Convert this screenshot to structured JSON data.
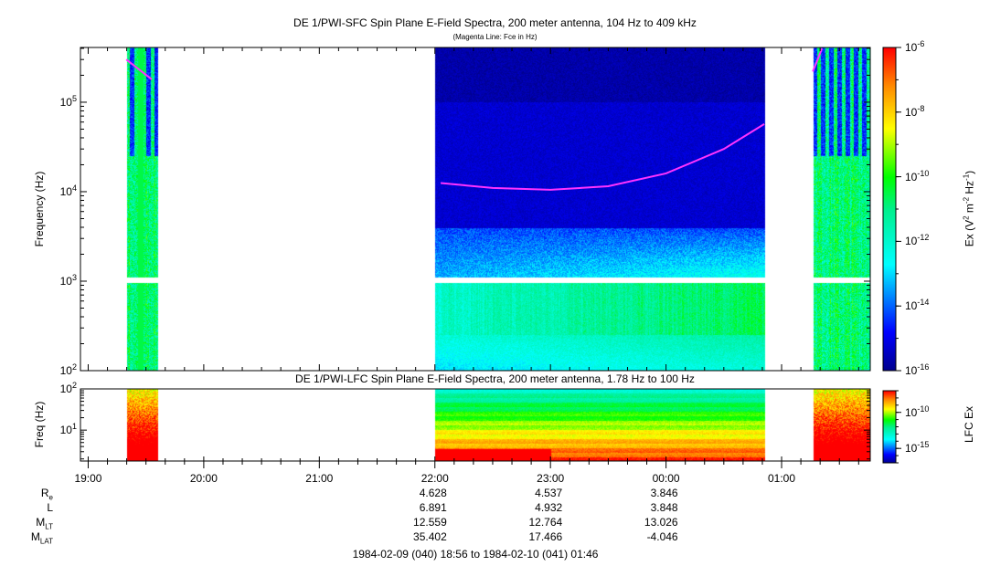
{
  "chart_data": [
    {
      "type": "heatmap",
      "title": "DE 1/PWI-SFC  Spin Plane E-Field Spectra, 200 meter antenna, 104 Hz to 409 kHz",
      "subtitle": "(Magenta Line: Fce in Hz)",
      "ylabel": "Frequency (Hz)",
      "yscale": "log",
      "ylim": [
        100,
        409000
      ],
      "yticks": [
        {
          "v": 100,
          "m": "10",
          "e": "2"
        },
        {
          "v": 1000,
          "m": "10",
          "e": "3"
        },
        {
          "v": 10000,
          "m": "10",
          "e": "4"
        },
        {
          "v": 100000,
          "m": "10",
          "e": "5"
        }
      ],
      "colorbar": {
        "label_main": "Ex (V",
        "label_tail": " m",
        "label_tail2": " Hz",
        "label_e1": "2",
        "label_e2": "-2",
        "label_e3": "-1",
        "label_close": ")",
        "range_log10": [
          -16,
          -6
        ],
        "ticks": [
          {
            "m": "10",
            "e": "-6",
            "v": -6
          },
          {
            "m": "10",
            "e": "-8",
            "v": -8
          },
          {
            "m": "10",
            "e": "-10",
            "v": -10
          },
          {
            "m": "10",
            "e": "-12",
            "v": -12
          },
          {
            "m": "10",
            "e": "-14",
            "v": -14
          },
          {
            "m": "10",
            "e": "-16",
            "v": -16
          }
        ]
      },
      "data_segments_hours": [
        [
          19.33,
          19.6
        ],
        [
          22.0,
          24.85
        ],
        [
          25.27,
          25.77
        ]
      ],
      "fce_line_hz": {
        "left": [
          [
            19.33,
            300000
          ],
          [
            19.55,
            180000
          ]
        ],
        "middle": [
          [
            22.05,
            12500
          ],
          [
            22.5,
            11000
          ],
          [
            23.0,
            10500
          ],
          [
            23.5,
            11500
          ],
          [
            24.0,
            16000
          ],
          [
            24.5,
            30000
          ],
          [
            24.85,
            57000
          ]
        ],
        "right": [
          [
            25.27,
            220000
          ],
          [
            25.35,
            400000
          ]
        ]
      }
    },
    {
      "type": "heatmap",
      "title": "DE 1/PWI-LFC  Spin Plane E-Field Spectra, 200 meter antenna, 1.78 Hz to 100 Hz",
      "ylabel": "Freq (Hz)",
      "yscale": "log",
      "ylim": [
        1.78,
        100
      ],
      "yticks": [
        {
          "v": 10,
          "m": "10",
          "e": "1"
        },
        {
          "v": 100,
          "m": "10",
          "e": "2"
        }
      ],
      "colorbar": {
        "label": "LFC Ex",
        "range_log10": [
          -17,
          -7
        ],
        "ticks": [
          {
            "m": "10",
            "e": "-10",
            "v": -10
          },
          {
            "m": "10",
            "e": "-15",
            "v": -15
          }
        ]
      },
      "data_segments_hours": [
        [
          19.33,
          19.6
        ],
        [
          22.0,
          24.85
        ],
        [
          25.27,
          25.77
        ]
      ]
    }
  ],
  "time_axis": {
    "range_hours": [
      18.933,
      25.767
    ],
    "ticks": [
      {
        "h": 19,
        "label": "19:00"
      },
      {
        "h": 20,
        "label": "20:00"
      },
      {
        "h": 21,
        "label": "21:00"
      },
      {
        "h": 22,
        "label": "22:00"
      },
      {
        "h": 23,
        "label": "23:00"
      },
      {
        "h": 24,
        "label": "00:00"
      },
      {
        "h": 25,
        "label": "01:00"
      }
    ]
  },
  "ephemeris": {
    "rows": [
      {
        "label": "R",
        "sub": "e",
        "values": [
          {
            "h": 22,
            "v": "4.628"
          },
          {
            "h": 23,
            "v": "4.537"
          },
          {
            "h": 24,
            "v": "3.846"
          }
        ]
      },
      {
        "label": "L",
        "sub": "",
        "values": [
          {
            "h": 22,
            "v": "6.891"
          },
          {
            "h": 23,
            "v": "4.932"
          },
          {
            "h": 24,
            "v": "3.848"
          }
        ]
      },
      {
        "label": "M",
        "sub": "LT",
        "values": [
          {
            "h": 22,
            "v": "12.559"
          },
          {
            "h": 23,
            "v": "12.764"
          },
          {
            "h": 24,
            "v": "13.026"
          }
        ]
      },
      {
        "label": "M",
        "sub": "LAT",
        "values": [
          {
            "h": 22,
            "v": "35.402"
          },
          {
            "h": 23,
            "v": "17.466"
          },
          {
            "h": 24,
            "v": "-4.046"
          }
        ]
      }
    ],
    "range_text": "1984-02-09 (040) 18:56 to 1984-02-10 (041) 01:46"
  },
  "colors": {
    "fce_line": "#ff33ff"
  }
}
